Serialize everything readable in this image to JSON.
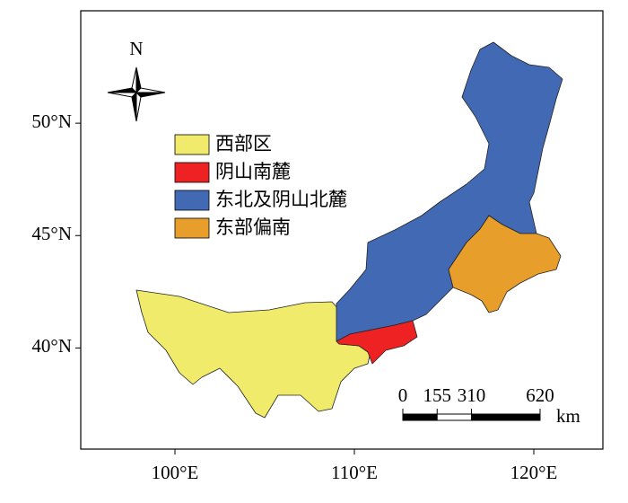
{
  "map": {
    "xlim": [
      94.75,
      123.85
    ],
    "ylim": [
      35.5,
      55
    ],
    "xticks": [
      {
        "value": 100,
        "label": "100°E"
      },
      {
        "value": 110,
        "label": "110°E"
      },
      {
        "value": 120,
        "label": "120°E"
      }
    ],
    "yticks": [
      {
        "value": 40,
        "label": "40°N"
      },
      {
        "value": 45,
        "label": "45°N"
      },
      {
        "value": 50,
        "label": "50°N"
      }
    ],
    "north_label": "N",
    "legend": [
      {
        "name": "西部区",
        "color": "#f0eb6a"
      },
      {
        "name": "阴山南麓",
        "color": "#ee2222"
      },
      {
        "name": "东北及阴山北麓",
        "color": "#4169b4"
      },
      {
        "name": "东部偏南",
        "color": "#e89e2a"
      }
    ],
    "scale_bar": {
      "ticks": [
        0,
        155,
        310,
        620
      ],
      "unit": "km"
    }
  }
}
